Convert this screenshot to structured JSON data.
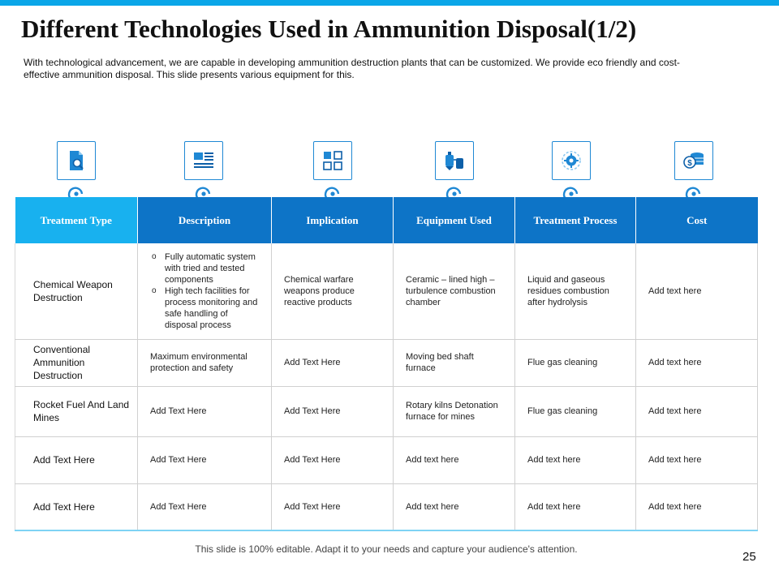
{
  "slide": {
    "title": "Different Technologies Used in Ammunition Disposal(1/2)",
    "intro": "With technological advancement,  we are capable in developing  ammunition destruction plants that can be customized. We provide  eco friendly and cost-effective  ammunition  disposal. This slide presents various  equipment for this.",
    "footer": "This slide is 100% editable. Adapt it to your needs and capture your audience's attention.",
    "page_number": "25"
  },
  "icons": [
    "document-search-icon",
    "news-layout-icon",
    "grid-blocks-icon",
    "chemical-tanks-icon",
    "gear-process-icon",
    "coins-money-icon"
  ],
  "colors": {
    "accent_light": "#18b1ef",
    "accent_dark": "#0d74c7",
    "top_bar": "#0aa6e8"
  },
  "table": {
    "headers": [
      "Treatment Type",
      "Description",
      "Implication",
      "Equipment Used",
      "Treatment Process",
      "Cost"
    ],
    "rows": [
      {
        "type": "Chemical Weapon Destruction",
        "description_bullets": [
          "Fully automatic system with tried and tested components",
          "High tech facilities for process monitoring and safe handling of disposal process"
        ],
        "implication": "Chemical warfare weapons produce reactive products",
        "equipment": "Ceramic – lined high – turbulence combustion chamber",
        "process": "Liquid and gaseous residues combustion after hydrolysis",
        "cost": "Add text here"
      },
      {
        "type": "Conventional Ammunition Destruction",
        "description": "Maximum environmental protection and safety",
        "implication": "Add Text Here",
        "equipment": "Moving bed shaft furnace",
        "process": "Flue gas cleaning",
        "cost": "Add text here"
      },
      {
        "type": "Rocket Fuel And Land Mines",
        "description": "Add Text Here",
        "implication": "Add Text Here",
        "equipment": "Rotary kilns Detonation furnace for mines",
        "process": "Flue gas cleaning",
        "cost": "Add text here"
      },
      {
        "type": "Add Text Here",
        "description": "Add Text Here",
        "implication": "Add Text Here",
        "equipment": "Add text here",
        "process": "Add text here",
        "cost": "Add text here"
      },
      {
        "type": "Add Text Here",
        "description": "Add Text Here",
        "implication": "Add Text Here",
        "equipment": "Add text here",
        "process": "Add text here",
        "cost": "Add text here"
      }
    ]
  }
}
